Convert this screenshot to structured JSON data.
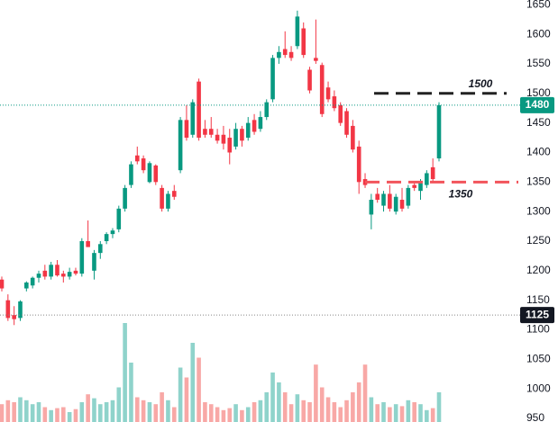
{
  "chart_data": {
    "type": "candlestick",
    "open": [
      1185,
      1150,
      1125,
      1120,
      1170,
      1175,
      1188,
      1200,
      1190,
      1210,
      1195,
      1190,
      1200,
      1195,
      1250,
      1200,
      1230,
      1250,
      1262,
      1270,
      1305,
      1345,
      1395,
      1390,
      1350,
      1378,
      1340,
      1305,
      1335,
      1370,
      1455,
      1430,
      1520,
      1440,
      1440,
      1430,
      1430,
      1425,
      1410,
      1440,
      1425,
      1455,
      1440,
      1460,
      1490,
      1560,
      1575,
      1570,
      1580,
      1610,
      1540,
      1560,
      1548,
      1510,
      1495,
      1480,
      1470,
      1445,
      1410,
      1355,
      1295,
      1330,
      1310,
      1330,
      1300,
      1320,
      1310,
      1345,
      1335,
      1345,
      1375,
      1390
    ],
    "high": [
      1190,
      1160,
      1140,
      1150,
      1182,
      1190,
      1200,
      1210,
      1215,
      1218,
      1200,
      1205,
      1205,
      1255,
      1285,
      1235,
      1250,
      1265,
      1272,
      1310,
      1345,
      1385,
      1410,
      1395,
      1385,
      1380,
      1345,
      1335,
      1345,
      1460,
      1480,
      1490,
      1525,
      1455,
      1460,
      1440,
      1445,
      1440,
      1450,
      1445,
      1460,
      1465,
      1470,
      1490,
      1565,
      1580,
      1605,
      1580,
      1640,
      1620,
      1545,
      1625,
      1552,
      1520,
      1505,
      1485,
      1475,
      1455,
      1420,
      1365,
      1330,
      1340,
      1335,
      1345,
      1330,
      1340,
      1345,
      1350,
      1355,
      1370,
      1390,
      1485
    ],
    "low": [
      1165,
      1115,
      1108,
      1115,
      1165,
      1170,
      1180,
      1185,
      1185,
      1190,
      1180,
      1185,
      1192,
      1190,
      1240,
      1185,
      1220,
      1245,
      1255,
      1265,
      1300,
      1340,
      1380,
      1365,
      1348,
      1345,
      1300,
      1300,
      1320,
      1365,
      1420,
      1425,
      1420,
      1425,
      1425,
      1415,
      1405,
      1380,
      1405,
      1410,
      1420,
      1430,
      1435,
      1455,
      1485,
      1550,
      1560,
      1555,
      1575,
      1560,
      1500,
      1550,
      1460,
      1485,
      1470,
      1445,
      1425,
      1400,
      1330,
      1340,
      1270,
      1315,
      1300,
      1300,
      1295,
      1300,
      1305,
      1335,
      1320,
      1340,
      1350,
      1385
    ],
    "close": [
      1170,
      1120,
      1118,
      1148,
      1180,
      1188,
      1195,
      1190,
      1210,
      1192,
      1190,
      1198,
      1195,
      1250,
      1240,
      1230,
      1245,
      1262,
      1268,
      1305,
      1340,
      1380,
      1385,
      1370,
      1382,
      1350,
      1305,
      1330,
      1325,
      1455,
      1425,
      1485,
      1425,
      1430,
      1430,
      1420,
      1415,
      1400,
      1440,
      1420,
      1450,
      1435,
      1460,
      1485,
      1560,
      1570,
      1565,
      1560,
      1630,
      1565,
      1505,
      1555,
      1465,
      1490,
      1475,
      1450,
      1430,
      1405,
      1350,
      1345,
      1320,
      1320,
      1330,
      1305,
      1325,
      1305,
      1340,
      1340,
      1350,
      1365,
      1355,
      1480
    ],
    "volume": [
      18,
      22,
      20,
      25,
      22,
      18,
      20,
      15,
      12,
      14,
      15,
      10,
      13,
      20,
      28,
      24,
      18,
      20,
      22,
      35,
      100,
      60,
      25,
      22,
      20,
      18,
      30,
      22,
      15,
      55,
      45,
      80,
      65,
      20,
      18,
      15,
      12,
      14,
      18,
      12,
      15,
      20,
      22,
      30,
      50,
      40,
      30,
      18,
      28,
      22,
      20,
      58,
      35,
      25,
      20,
      15,
      22,
      30,
      40,
      58,
      25,
      18,
      20,
      15,
      18,
      16,
      22,
      20,
      18,
      12,
      14,
      30
    ],
    "up_color": "#089981",
    "down_color": "#f23645",
    "volume_up_color": "#8fd3cb",
    "volume_down_color": "#f8a8a6",
    "ylim": [
      944,
      1658
    ],
    "yticks": [
      1650,
      1600,
      1550,
      1500,
      1450,
      1400,
      1350,
      1300,
      1250,
      1200,
      1150,
      1100,
      1050,
      1000,
      950
    ],
    "levels": [
      {
        "value": 1500,
        "color": "#222222"
      },
      {
        "value": 1350,
        "color": "#f2545b"
      }
    ],
    "markers": [
      {
        "value": 1480,
        "color": "#089981"
      },
      {
        "value": 1125,
        "color": "#131722"
      }
    ]
  }
}
